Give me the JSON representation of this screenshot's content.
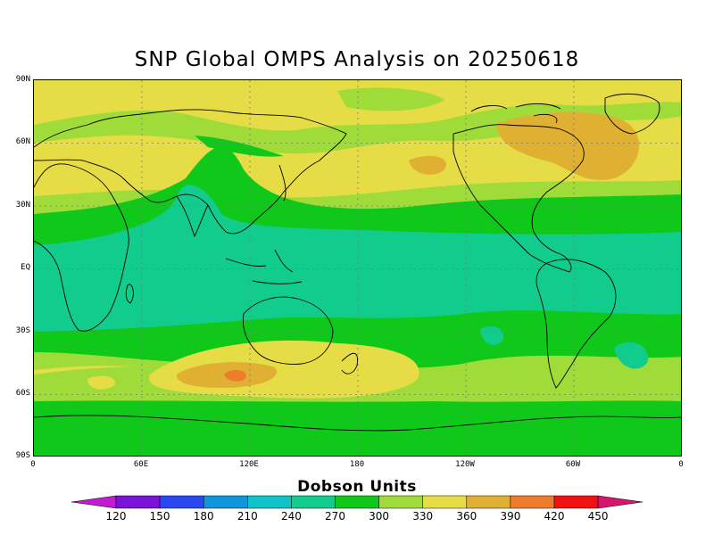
{
  "title": "SNP Global OMPS Analysis on 20250618",
  "map": {
    "lat_labels": [
      "90N",
      "60N",
      "30N",
      "EQ",
      "30S",
      "60S",
      "90S"
    ],
    "lon_labels": [
      "0",
      "60E",
      "120E",
      "180",
      "120W",
      "60W",
      "0"
    ],
    "ocean_base_color": "#e6dd46"
  },
  "colorbar": {
    "title": "Dobson Units",
    "labels": [
      "120",
      "150",
      "180",
      "210",
      "240",
      "270",
      "300",
      "330",
      "360",
      "390",
      "420",
      "450"
    ],
    "colors": [
      "#c21bd0",
      "#7a12d8",
      "#2a48f0",
      "#1095dc",
      "#10c3c8",
      "#12cc8e",
      "#10c81a",
      "#9fdc3a",
      "#e6dd46",
      "#e0b032",
      "#ee7c2c",
      "#f01212",
      "#d8156e"
    ]
  }
}
